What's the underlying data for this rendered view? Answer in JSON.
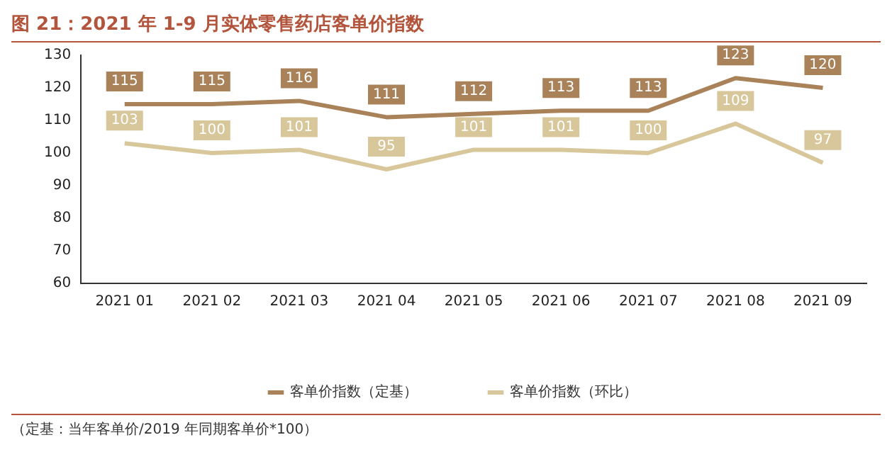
{
  "chart_data": {
    "type": "line",
    "title": "图 21：2021 年 1-9 月实体零售药店客单价指数",
    "annotations": [
      "（定基：当年客单价/2019 年同期客单价*100）"
    ],
    "categories": [
      "2021 01",
      "2021 02",
      "2021 03",
      "2021 04",
      "2021 05",
      "2021 06",
      "2021 07",
      "2021 08",
      "2021 09"
    ],
    "series": [
      {
        "name": "客单价指数（定基）",
        "color": "#a9825a",
        "values": [
          115,
          115,
          116,
          111,
          112,
          113,
          113,
          123,
          120
        ]
      },
      {
        "name": "客单价指数（环比）",
        "color": "#d9c79c",
        "values": [
          103,
          100,
          101,
          95,
          101,
          101,
          100,
          109,
          97
        ]
      }
    ],
    "ylim": [
      60,
      130
    ],
    "yticks": [
      60,
      70,
      80,
      90,
      100,
      110,
      120,
      130
    ],
    "grid": false,
    "legend": "bottom",
    "marker": "none",
    "line_style": "solid",
    "data_labels": true
  }
}
